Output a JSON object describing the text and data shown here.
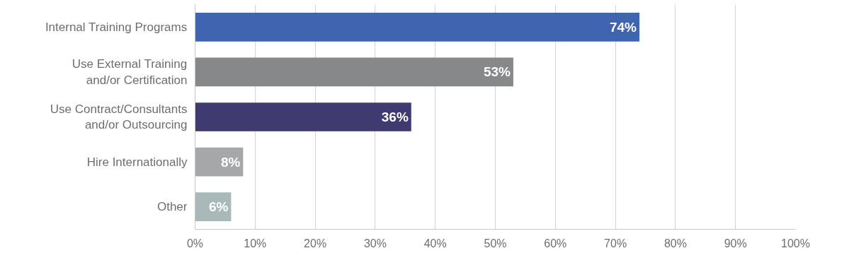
{
  "chart_data": {
    "type": "bar",
    "orientation": "horizontal",
    "categories": [
      "Internal Training Programs",
      "Use External Training\nand/or Certification",
      "Use Contract/Consultants\nand/or Outsourcing",
      "Hire Internationally",
      "Other"
    ],
    "values": [
      74,
      53,
      36,
      8,
      6
    ],
    "colors": [
      "#3f65b0",
      "#87888a",
      "#3f3a70",
      "#a6a7a9",
      "#a9b8b9"
    ],
    "xlim": [
      0,
      100
    ],
    "xticks": [
      {
        "value": 0,
        "label": "0%"
      },
      {
        "value": 10,
        "label": "10%"
      },
      {
        "value": 20,
        "label": "20%"
      },
      {
        "value": 30,
        "label": "30%"
      },
      {
        "value": 40,
        "label": "40%"
      },
      {
        "value": 50,
        "label": "50%"
      },
      {
        "value": 60,
        "label": "60%"
      },
      {
        "value": 70,
        "label": "70%"
      },
      {
        "value": 80,
        "label": "80%"
      },
      {
        "value": 90,
        "label": "90%"
      },
      {
        "value": 100,
        "label": "100%"
      }
    ],
    "value_labels": [
      "74%",
      "53%",
      "36%",
      "8%",
      "6%"
    ],
    "grid": "x"
  }
}
